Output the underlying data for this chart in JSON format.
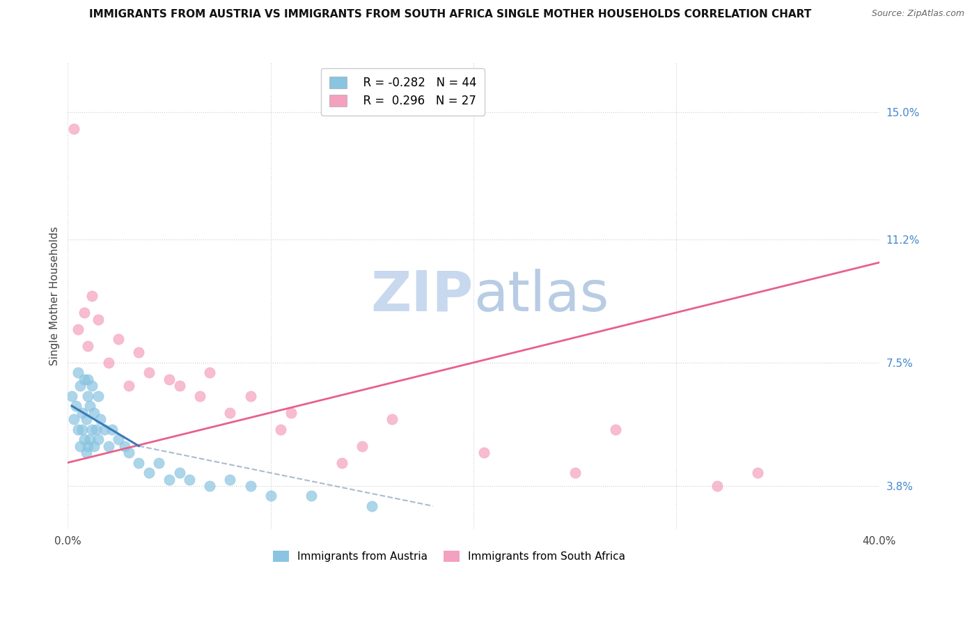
{
  "title": "IMMIGRANTS FROM AUSTRIA VS IMMIGRANTS FROM SOUTH AFRICA SINGLE MOTHER HOUSEHOLDS CORRELATION CHART",
  "source": "Source: ZipAtlas.com",
  "ylabel": "Single Mother Households",
  "y_ticks_right": [
    3.8,
    7.5,
    11.2,
    15.0
  ],
  "y_tick_labels_right": [
    "3.8%",
    "7.5%",
    "11.2%",
    "15.0%"
  ],
  "xlim": [
    0.0,
    40.0
  ],
  "ylim": [
    2.5,
    16.5
  ],
  "R_austria": -0.282,
  "N_austria": 44,
  "R_south_africa": 0.296,
  "N_south_africa": 27,
  "color_austria": "#89c4e1",
  "color_south_africa": "#f4a0bf",
  "trend_color_austria_solid": "#3a7ab8",
  "trend_color_austria_dashed": "#aabbd0",
  "trend_color_south_africa": "#e8608a",
  "watermark_color": "#c8d8ee",
  "background_color": "#ffffff",
  "title_fontsize": 11,
  "austria_x": [
    0.2,
    0.3,
    0.4,
    0.5,
    0.5,
    0.6,
    0.6,
    0.7,
    0.7,
    0.8,
    0.8,
    0.9,
    0.9,
    1.0,
    1.0,
    1.0,
    1.1,
    1.1,
    1.2,
    1.2,
    1.3,
    1.3,
    1.4,
    1.5,
    1.5,
    1.6,
    1.8,
    2.0,
    2.2,
    2.5,
    2.8,
    3.0,
    3.5,
    4.0,
    4.5,
    5.0,
    5.5,
    6.0,
    7.0,
    8.0,
    9.0,
    10.0,
    12.0,
    15.0
  ],
  "austria_y": [
    6.5,
    5.8,
    6.2,
    5.5,
    7.2,
    5.0,
    6.8,
    5.5,
    6.0,
    5.2,
    7.0,
    4.8,
    5.8,
    5.0,
    6.5,
    7.0,
    5.2,
    6.2,
    5.5,
    6.8,
    5.0,
    6.0,
    5.5,
    5.2,
    6.5,
    5.8,
    5.5,
    5.0,
    5.5,
    5.2,
    5.0,
    4.8,
    4.5,
    4.2,
    4.5,
    4.0,
    4.2,
    4.0,
    3.8,
    4.0,
    3.8,
    3.5,
    3.5,
    3.2
  ],
  "south_africa_x": [
    0.3,
    0.5,
    0.8,
    1.0,
    1.2,
    1.5,
    2.0,
    2.5,
    3.0,
    3.5,
    4.0,
    5.0,
    5.5,
    6.5,
    7.0,
    8.0,
    9.0,
    10.5,
    11.0,
    13.5,
    14.5,
    16.0,
    20.5,
    25.0,
    27.0,
    32.0,
    34.0
  ],
  "south_africa_y": [
    14.5,
    8.5,
    9.0,
    8.0,
    9.5,
    8.8,
    7.5,
    8.2,
    6.8,
    7.8,
    7.2,
    7.0,
    6.8,
    6.5,
    7.2,
    6.0,
    6.5,
    5.5,
    6.0,
    4.5,
    5.0,
    5.8,
    4.8,
    4.2,
    5.5,
    3.8,
    4.2
  ],
  "sa_trend_x_start": 0.0,
  "sa_trend_x_end": 40.0,
  "sa_trend_y_start": 4.5,
  "sa_trend_y_end": 10.5,
  "at_solid_x_start": 0.2,
  "at_solid_x_end": 3.5,
  "at_solid_y_start": 6.2,
  "at_solid_y_end": 5.0,
  "at_dashed_x_start": 3.5,
  "at_dashed_x_end": 18.0,
  "at_dashed_y_start": 5.0,
  "at_dashed_y_end": 3.2
}
